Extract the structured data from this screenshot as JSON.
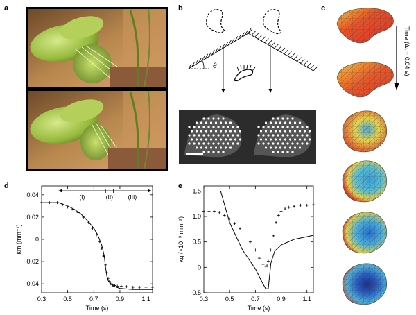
{
  "panel_labels": {
    "a": "a",
    "b": "b",
    "c": "c",
    "d": "d",
    "e": "e"
  },
  "panel_b": {
    "angle_label": "θ"
  },
  "panel_c": {
    "time_label": "Time (Δt = 0.04 s)"
  },
  "chart_data": [
    {
      "panel": "d",
      "type": "line",
      "xlabel": "Time (s)",
      "ylabel": "κm (mm⁻¹)",
      "xlim": [
        0.3,
        1.15
      ],
      "ylim": [
        -0.048,
        0.048
      ],
      "xticks": [
        "0.3",
        "0.5",
        "0.7",
        "0.9",
        "1.1"
      ],
      "yticks": [
        "0.04",
        "0.02",
        "0",
        "-0.02",
        "-0.04"
      ],
      "phases": [
        "(I)",
        "(II)",
        "(III)"
      ],
      "series": [
        {
          "style": "markers",
          "x": [
            0.3,
            0.36,
            0.42,
            0.46,
            0.5,
            0.54,
            0.58,
            0.62,
            0.66,
            0.69,
            0.72,
            0.745,
            0.76,
            0.775,
            0.79,
            0.8,
            0.81,
            0.82,
            0.83,
            0.845,
            0.86,
            0.88,
            0.91,
            0.95,
            1.0,
            1.05,
            1.1,
            1.15
          ],
          "y": [
            0.033,
            0.033,
            0.033,
            0.031,
            0.029,
            0.027,
            0.024,
            0.02,
            0.015,
            0.01,
            0.004,
            -0.002,
            -0.008,
            -0.015,
            -0.023,
            -0.03,
            -0.035,
            -0.038,
            -0.04,
            -0.041,
            -0.0415,
            -0.042,
            -0.042,
            -0.0425,
            -0.043,
            -0.043,
            -0.043,
            -0.043
          ]
        },
        {
          "style": "line",
          "x": [
            0.3,
            0.4,
            0.43,
            0.5,
            0.55,
            0.6,
            0.65,
            0.7,
            0.73,
            0.76,
            0.78,
            0.79,
            0.8,
            0.81,
            0.83,
            0.85,
            0.9,
            1.0,
            1.15
          ],
          "y": [
            0.033,
            0.033,
            0.033,
            0.03,
            0.027,
            0.023,
            0.017,
            0.01,
            0.004,
            -0.005,
            -0.015,
            -0.025,
            -0.033,
            -0.037,
            -0.04,
            -0.042,
            -0.044,
            -0.045,
            -0.045
          ]
        }
      ]
    },
    {
      "panel": "e",
      "type": "line",
      "xlabel": "Time (s)",
      "ylabel": "κg (×10⁻³ mm⁻²)",
      "xlim": [
        0.3,
        1.15
      ],
      "ylim": [
        -0.5,
        1.6
      ],
      "xticks": [
        "0.3",
        "0.5",
        "0.7",
        "0.9",
        "1.1"
      ],
      "yticks": [
        "1.5",
        "1.0",
        "0.5",
        "0",
        "-0.5"
      ],
      "series": [
        {
          "style": "markers",
          "x": [
            0.3,
            0.34,
            0.38,
            0.42,
            0.46,
            0.5,
            0.54,
            0.58,
            0.62,
            0.66,
            0.7,
            0.73,
            0.76,
            0.78,
            0.79,
            0.8,
            0.82,
            0.84,
            0.86,
            0.88,
            0.9,
            0.93,
            0.96,
            1.0,
            1.05,
            1.1,
            1.15
          ],
          "y": [
            1.1,
            1.1,
            1.1,
            1.08,
            1.02,
            0.95,
            0.86,
            0.76,
            0.64,
            0.5,
            0.34,
            0.18,
            0.06,
            0.02,
            0.03,
            0.12,
            0.34,
            0.62,
            0.88,
            1.02,
            1.1,
            1.15,
            1.18,
            1.2,
            1.22,
            1.22,
            1.23
          ]
        },
        {
          "style": "line",
          "x": [
            0.43,
            0.5,
            0.6,
            0.7,
            0.75,
            0.78,
            0.8,
            0.82,
            0.85,
            0.9,
            1.0,
            1.15
          ],
          "y": [
            1.5,
            0.88,
            0.34,
            -0.03,
            -0.28,
            -0.42,
            -0.42,
            0.08,
            0.32,
            0.44,
            0.55,
            0.63
          ]
        }
      ]
    }
  ]
}
